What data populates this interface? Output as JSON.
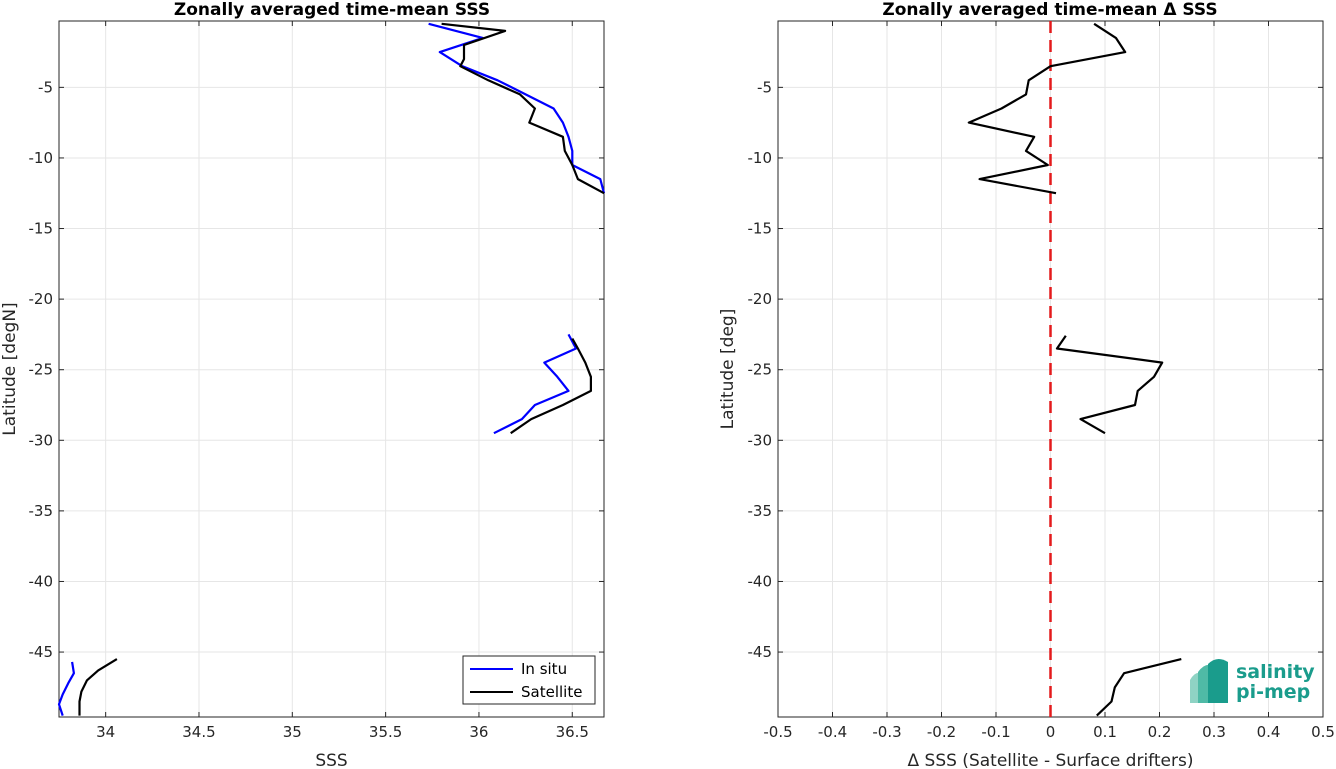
{
  "chart_data": [
    {
      "type": "line",
      "title": "Zonally averaged time-mean SSS",
      "xlabel": "SSS",
      "ylabel": "Latitude [degN]",
      "xlim": [
        33.75,
        36.67
      ],
      "ylim": [
        -49.6,
        -0.3
      ],
      "xticks": [
        34,
        34.5,
        35,
        35.5,
        36,
        36.5
      ],
      "xtick_labels": [
        "34",
        "34.5",
        "35",
        "35.5",
        "36",
        "36.5"
      ],
      "yticks": [
        -5,
        -10,
        -15,
        -20,
        -25,
        -30,
        -35,
        -40,
        -45
      ],
      "ytick_labels": [
        "-5",
        "-10",
        "-15",
        "-20",
        "-25",
        "-30",
        "-35",
        "-40",
        "-45"
      ],
      "grid": true,
      "legend": "bottom-right",
      "series": [
        {
          "name": "In situ",
          "color": "#0000ff",
          "segments": [
            [
              [
                35.73,
                -0.5
              ],
              [
                36.02,
                -1.5
              ],
              [
                35.79,
                -2.5
              ],
              [
                35.91,
                -3.5
              ],
              [
                36.1,
                -4.5
              ],
              [
                36.25,
                -5.5
              ],
              [
                36.4,
                -6.5
              ],
              [
                36.45,
                -7.5
              ],
              [
                36.48,
                -8.5
              ],
              [
                36.5,
                -9.5
              ],
              [
                36.5,
                -10.5
              ],
              [
                36.65,
                -11.5
              ],
              [
                36.67,
                -12.5
              ]
            ],
            [
              [
                36.48,
                -22.5
              ],
              [
                36.52,
                -23.5
              ],
              [
                36.35,
                -24.5
              ],
              [
                36.42,
                -25.5
              ],
              [
                36.48,
                -26.5
              ],
              [
                36.3,
                -27.5
              ],
              [
                36.23,
                -28.5
              ],
              [
                36.08,
                -29.5
              ]
            ],
            [
              [
                33.82,
                -45.7
              ],
              [
                33.83,
                -46.5
              ],
              [
                33.8,
                -47.2
              ],
              [
                33.77,
                -48
              ],
              [
                33.75,
                -48.7
              ],
              [
                33.77,
                -49.5
              ]
            ]
          ]
        },
        {
          "name": "Satellite",
          "color": "#000000",
          "segments": [
            [
              [
                35.8,
                -0.5
              ],
              [
                36.14,
                -1
              ],
              [
                35.92,
                -2
              ],
              [
                35.92,
                -3
              ],
              [
                35.9,
                -3.5
              ],
              [
                36.05,
                -4.5
              ],
              [
                36.22,
                -5.5
              ],
              [
                36.3,
                -6.5
              ],
              [
                36.27,
                -7.5
              ],
              [
                36.45,
                -8.5
              ],
              [
                36.46,
                -9.5
              ],
              [
                36.5,
                -10.5
              ],
              [
                36.53,
                -11.5
              ],
              [
                36.67,
                -12.5
              ]
            ],
            [
              [
                36.5,
                -22.8
              ],
              [
                36.53,
                -23.5
              ],
              [
                36.57,
                -24.5
              ],
              [
                36.6,
                -25.5
              ],
              [
                36.6,
                -26.5
              ],
              [
                36.45,
                -27.5
              ],
              [
                36.28,
                -28.5
              ],
              [
                36.17,
                -29.5
              ]
            ],
            [
              [
                34.06,
                -45.5
              ],
              [
                33.96,
                -46.3
              ],
              [
                33.9,
                -47
              ],
              [
                33.87,
                -47.8
              ],
              [
                33.86,
                -48.5
              ],
              [
                33.86,
                -49.5
              ]
            ]
          ]
        }
      ]
    },
    {
      "type": "line",
      "title": "Zonally averaged time-mean Δ SSS",
      "xlabel": "Δ SSS (Satellite - Surface drifters)",
      "ylabel": "Latitude [deg]",
      "xlim": [
        -0.5,
        0.5
      ],
      "ylim": [
        -49.6,
        -0.3
      ],
      "xticks": [
        -0.5,
        -0.4,
        -0.3,
        -0.2,
        -0.1,
        0,
        0.1,
        0.2,
        0.3,
        0.4,
        0.5
      ],
      "xtick_labels": [
        "-0.5",
        "-0.4",
        "-0.3",
        "-0.2",
        "-0.1",
        "0",
        "0.1",
        "0.2",
        "0.3",
        "0.4",
        "0.5"
      ],
      "yticks": [
        -5,
        -10,
        -15,
        -20,
        -25,
        -30,
        -35,
        -40,
        -45
      ],
      "ytick_labels": [
        "-5",
        "-10",
        "-15",
        "-20",
        "-25",
        "-30",
        "-35",
        "-40",
        "-45"
      ],
      "grid": true,
      "reference_line": {
        "x": 0,
        "color": "#e41a1c",
        "style": "dashed"
      },
      "series": [
        {
          "color": "#000000",
          "segments": [
            [
              [
                0.08,
                -0.5
              ],
              [
                0.12,
                -1.5
              ],
              [
                0.137,
                -2.5
              ],
              [
                0.0,
                -3.5
              ],
              [
                -0.04,
                -4.5
              ],
              [
                -0.045,
                -5.5
              ],
              [
                -0.09,
                -6.5
              ],
              [
                -0.15,
                -7.5
              ],
              [
                -0.03,
                -8.5
              ],
              [
                -0.045,
                -9.5
              ],
              [
                -0.005,
                -10.5
              ],
              [
                -0.13,
                -11.5
              ],
              [
                0.01,
                -12.5
              ]
            ],
            [
              [
                0.028,
                -22.6
              ],
              [
                0.012,
                -23.5
              ],
              [
                0.205,
                -24.5
              ],
              [
                0.19,
                -25.5
              ],
              [
                0.16,
                -26.5
              ],
              [
                0.155,
                -27.5
              ],
              [
                0.055,
                -28.5
              ],
              [
                0.1,
                -29.5
              ]
            ],
            [
              [
                0.24,
                -45.5
              ],
              [
                0.135,
                -46.5
              ],
              [
                0.118,
                -47.5
              ],
              [
                0.112,
                -48.5
              ],
              [
                0.085,
                -49.5
              ]
            ]
          ]
        }
      ]
    }
  ],
  "logo": {
    "line1": "salinity",
    "line2": "pi-mep",
    "color": "#1a9c8c"
  }
}
